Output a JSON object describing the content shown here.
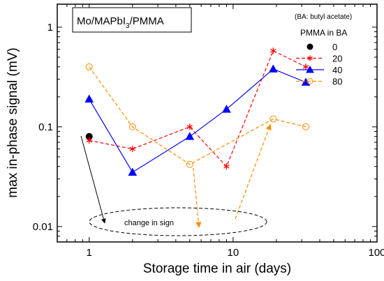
{
  "chart_data": {
    "type": "line",
    "title": {
      "main": "Mo/MAPbI",
      "sub": "3",
      "rest": "/PMMA"
    },
    "note": "(BA: butyl acetate)",
    "xlabel": "Storage time in air (days)",
    "ylabel": "max in-phase signal (mV)",
    "xscale": "log",
    "yscale": "log",
    "xlim": [
      0.6,
      100
    ],
    "ylim": [
      0.007,
      1.7
    ],
    "xticks": [
      {
        "value": 1,
        "label": "1"
      },
      {
        "value": 10,
        "label": "10"
      },
      {
        "value": 100,
        "label": "100"
      }
    ],
    "yticks": [
      {
        "value": 0.01,
        "label": "0.01"
      },
      {
        "value": 0.1,
        "label": "0.1"
      },
      {
        "value": 1,
        "label": "1"
      }
    ],
    "legend": {
      "title": "PMMA in BA",
      "position": "top-right"
    },
    "series": [
      {
        "name": "0",
        "color": "#000000",
        "marker": "filled-circle",
        "line": "none",
        "points": [
          {
            "x": 1,
            "y": 0.08
          }
        ]
      },
      {
        "name": "20",
        "color": "#ff0000",
        "marker": "asterisk",
        "line": "dashed",
        "points": [
          {
            "x": 1,
            "y": 0.073
          },
          {
            "x": 2,
            "y": 0.06
          },
          {
            "x": 5,
            "y": 0.1
          },
          {
            "x": 9,
            "y": 0.04
          },
          {
            "x": 19,
            "y": 0.58
          },
          {
            "x": 32,
            "y": 0.4
          }
        ]
      },
      {
        "name": "40",
        "color": "#0000ff",
        "marker": "filled-triangle",
        "line": "solid",
        "points": [
          {
            "x": 1,
            "y": 0.19
          },
          {
            "x": 2,
            "y": 0.035
          },
          {
            "x": 5,
            "y": 0.08
          },
          {
            "x": 9,
            "y": 0.15
          },
          {
            "x": 19,
            "y": 0.38
          },
          {
            "x": 32,
            "y": 0.28
          }
        ]
      },
      {
        "name": "80",
        "color": "#ff8c00",
        "marker": "open-circle",
        "line": "dashed",
        "points": [
          {
            "x": 1,
            "y": 0.4
          },
          {
            "x": 2,
            "y": 0.1
          },
          {
            "x": 5,
            "y": 0.042
          },
          {
            "x": 19,
            "y": 0.12
          },
          {
            "x": 32,
            "y": 0.1
          }
        ]
      }
    ],
    "annotation": {
      "text": "change in sign"
    }
  }
}
